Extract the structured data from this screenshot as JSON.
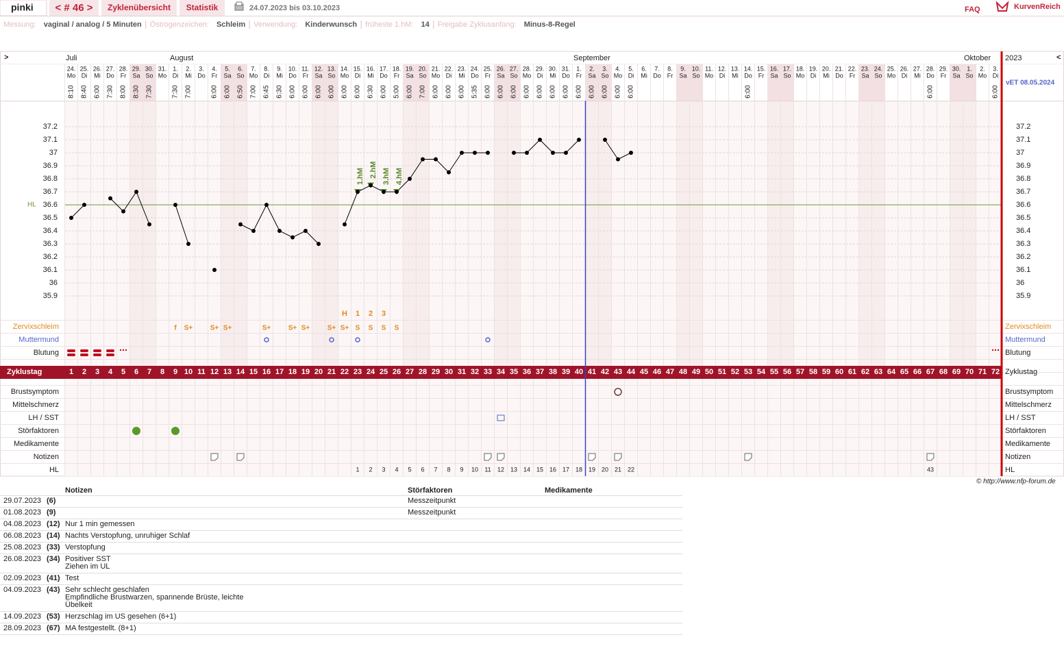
{
  "header": {
    "user": "pinki",
    "cycle": "< # 46 >",
    "tabs": [
      "Zyklenübersicht",
      "Statistik"
    ],
    "date_range": "24.07.2023 bis 03.10.2023",
    "faq": "FAQ",
    "brand": "KurvenReich"
  },
  "info": [
    {
      "label": "Messung:",
      "value": "vaginal / analog / 5 Minuten"
    },
    {
      "label": "Östrogenzeichen:",
      "value": "Schleim"
    },
    {
      "label": "Verwendung:",
      "value": "Kinderwunsch"
    },
    {
      "label": "früheste 1.hM:",
      "value": "14"
    },
    {
      "label": "Freigabe Zyklusanfang:",
      "value": "Minus-8-Regel"
    }
  ],
  "chart_data": {
    "type": "line",
    "nav_left": ">",
    "nav_right": "<",
    "year": "2023",
    "vet": "vET 08.05.2024",
    "months": [
      "Juli",
      null,
      null,
      null,
      null,
      null,
      null,
      null,
      "August",
      null,
      null,
      null,
      null,
      null,
      null,
      null,
      null,
      null,
      null,
      null,
      null,
      null,
      null,
      null,
      null,
      null,
      null,
      null,
      null,
      null,
      null,
      null,
      null,
      null,
      null,
      null,
      null,
      null,
      null,
      "September",
      null,
      null,
      null,
      null,
      null,
      null,
      null,
      null,
      null,
      null,
      null,
      null,
      null,
      null,
      null,
      null,
      null,
      null,
      null,
      null,
      null,
      null,
      null,
      null,
      null,
      null,
      null,
      null,
      null,
      "Oktober",
      null,
      null
    ],
    "dates": [
      "24.",
      "25.",
      "26.",
      "27.",
      "28.",
      "29.",
      "30.",
      "31.",
      "1.",
      "2.",
      "3.",
      "4.",
      "5.",
      "6.",
      "7.",
      "8.",
      "9.",
      "10.",
      "11.",
      "12.",
      "13.",
      "14.",
      "15.",
      "16.",
      "17.",
      "18.",
      "19.",
      "20.",
      "21.",
      "22.",
      "23.",
      "24.",
      "25.",
      "26.",
      "27.",
      "28.",
      "29.",
      "30.",
      "31.",
      "1.",
      "2.",
      "3.",
      "4.",
      "5.",
      "6.",
      "7.",
      "8.",
      "9.",
      "10.",
      "11.",
      "12.",
      "13.",
      "14.",
      "15.",
      "16.",
      "17.",
      "18.",
      "19.",
      "20.",
      "21.",
      "22.",
      "23.",
      "24.",
      "25.",
      "26.",
      "27.",
      "28.",
      "29.",
      "30.",
      "1.",
      "2.",
      "3."
    ],
    "weekdays": [
      "Mo",
      "Di",
      "Mi",
      "Do",
      "Fr",
      "Sa",
      "So",
      "Mo",
      "Di",
      "Mi",
      "Do",
      "Fr",
      "Sa",
      "So",
      "Mo",
      "Di",
      "Mi",
      "Do",
      "Fr",
      "Sa",
      "So",
      "Mo",
      "Di",
      "Mi",
      "Do",
      "Fr",
      "Sa",
      "So",
      "Mo",
      "Di",
      "Mi",
      "Do",
      "Fr",
      "Sa",
      "So",
      "Mo",
      "Di",
      "Mi",
      "Do",
      "Fr",
      "Sa",
      "So",
      "Mo",
      "Di",
      "Mi",
      "Do",
      "Fr",
      "Sa",
      "So",
      "Mo",
      "Di",
      "Mi",
      "Do",
      "Fr",
      "Sa",
      "So",
      "Mo",
      "Di",
      "Mi",
      "Do",
      "Fr",
      "Sa",
      "So",
      "Mo",
      "Di",
      "Mi",
      "Do",
      "Fr",
      "Sa",
      "So",
      "Mo",
      "Di"
    ],
    "times": [
      "8:10",
      "8:40",
      "6:00",
      "7:30",
      "8:00",
      "8:30",
      "7:30",
      null,
      "7:30",
      "7:00",
      null,
      "6:00",
      "6:00",
      "6:50",
      "7:00",
      "6:45",
      "6:30",
      "6:00",
      "6:00",
      "6:00",
      "6:00",
      "6:00",
      "6:00",
      "6:30",
      "6:00",
      "5:00",
      "6:00",
      "7:00",
      "6:00",
      "6:00",
      "6:00",
      "5:35",
      "6:00",
      "6:00",
      "6:00",
      "6:00",
      "6:00",
      "6:00",
      "6:00",
      "6:00",
      "6:00",
      "6:00",
      "6:00",
      "6:00",
      null,
      null,
      null,
      null,
      null,
      null,
      null,
      null,
      "6:00",
      null,
      null,
      null,
      null,
      null,
      null,
      null,
      null,
      null,
      null,
      null,
      null,
      null,
      "6:00",
      null,
      null,
      null,
      null,
      "6:00"
    ],
    "categories": [
      1,
      2,
      3,
      4,
      5,
      6,
      7,
      8,
      9,
      10,
      11,
      12,
      13,
      14,
      15,
      16,
      17,
      18,
      19,
      20,
      21,
      22,
      23,
      24,
      25,
      26,
      27,
      28,
      29,
      30,
      31,
      32,
      33,
      34,
      35,
      36,
      37,
      38,
      39,
      40,
      41,
      42,
      43,
      44,
      45,
      46,
      47,
      48,
      49,
      50,
      51,
      52,
      53,
      54,
      55,
      56,
      57,
      58,
      59,
      60,
      61,
      62,
      63,
      64,
      65,
      66,
      67,
      68,
      69,
      70,
      71,
      72
    ],
    "series": [
      {
        "name": "Temperatur",
        "color": "#000000",
        "values": [
          36.5,
          36.6,
          null,
          36.65,
          36.55,
          36.7,
          36.45,
          null,
          36.6,
          36.3,
          null,
          36.1,
          null,
          36.45,
          36.4,
          36.6,
          36.4,
          36.35,
          36.4,
          36.3,
          null,
          36.45,
          36.7,
          36.75,
          36.7,
          36.7,
          36.8,
          36.95,
          36.95,
          36.85,
          37,
          37,
          37,
          null,
          37,
          37,
          37.1,
          37,
          37,
          37.1,
          null,
          37.1,
          36.95,
          37,
          null,
          null,
          null,
          null,
          null,
          null,
          null,
          null,
          null,
          null,
          null,
          null,
          null,
          null,
          null,
          null,
          null,
          null,
          null,
          null,
          null,
          null,
          null,
          null,
          null,
          null,
          null,
          null
        ]
      }
    ],
    "ylim": [
      35.8,
      37.3
    ],
    "yticks": [
      35.9,
      36,
      36.1,
      36.2,
      36.3,
      36.4,
      36.5,
      36.6,
      36.7,
      36.8,
      36.9,
      37,
      37.1,
      37.2
    ],
    "grid": true,
    "hl": {
      "label": "HL",
      "value": 36.6,
      "color": "#6a9a3a"
    },
    "hm_labels": [
      null,
      null,
      null,
      null,
      null,
      null,
      null,
      null,
      null,
      null,
      null,
      null,
      null,
      null,
      null,
      null,
      null,
      null,
      null,
      null,
      null,
      null,
      "1.hM",
      "2.hM",
      "3.hM",
      "4.hM",
      null,
      null,
      null,
      null,
      null,
      null,
      null,
      null,
      null,
      null,
      null,
      null,
      null,
      null,
      null,
      null,
      null,
      null,
      null,
      null,
      null,
      null,
      null,
      null,
      null,
      null,
      null,
      null,
      null,
      null,
      null,
      null,
      null,
      null,
      null,
      null,
      null,
      null,
      null,
      null,
      null,
      null,
      null,
      null,
      null,
      null
    ],
    "peak_labels": [
      null,
      null,
      null,
      null,
      null,
      null,
      null,
      null,
      null,
      null,
      null,
      null,
      null,
      null,
      null,
      null,
      null,
      null,
      null,
      null,
      null,
      "H",
      "1",
      "2",
      "3",
      null,
      null,
      null,
      null,
      null,
      null,
      null,
      null,
      null,
      null,
      null,
      null,
      null,
      null,
      null,
      null,
      null,
      null,
      null,
      null,
      null,
      null,
      null,
      null,
      null,
      null,
      null,
      null,
      null,
      null,
      null,
      null,
      null,
      null,
      null,
      null,
      null,
      null,
      null,
      null,
      null,
      null,
      null,
      null,
      null,
      null,
      null
    ],
    "rows": [
      {
        "label": "Zervixschleim",
        "color": "#e08a20",
        "values": [
          null,
          null,
          null,
          null,
          null,
          null,
          null,
          null,
          "f",
          "S+",
          null,
          "S+",
          "S+",
          null,
          null,
          "S+",
          null,
          "S+",
          "S+",
          null,
          "S+",
          "S+",
          "S",
          "S",
          "S",
          "S",
          null,
          null,
          null,
          null,
          null,
          null,
          null,
          null,
          null,
          null,
          null,
          null,
          null,
          null,
          null,
          null,
          null,
          null,
          null,
          null,
          null,
          null,
          null,
          null,
          null,
          null,
          null,
          null,
          null,
          null,
          null,
          null,
          null,
          null,
          null,
          null,
          null,
          null,
          null,
          null,
          null,
          null,
          null,
          null,
          null,
          null
        ]
      },
      {
        "label": "Muttermund",
        "color": "#5566cc",
        "days": [
          16,
          21,
          23,
          33
        ]
      },
      {
        "label": "Blutung",
        "heavy": [
          1,
          2,
          3,
          4
        ],
        "spotting": [
          5,
          72
        ]
      },
      {
        "label": "Zyklustag"
      },
      {
        "label": "Brustsymptom",
        "days": [
          43
        ]
      },
      {
        "label": "Mittelschmerz"
      },
      {
        "label": "LH / SST",
        "days": [
          34
        ]
      },
      {
        "label": "Störfaktoren",
        "days": [
          6,
          9
        ]
      },
      {
        "label": "Medikamente"
      },
      {
        "label": "Notizen",
        "days": [
          12,
          14,
          33,
          34,
          41,
          43,
          53,
          67
        ]
      },
      {
        "label": "HL",
        "values": [
          null,
          null,
          null,
          null,
          null,
          null,
          null,
          null,
          null,
          null,
          null,
          null,
          null,
          null,
          null,
          null,
          null,
          null,
          null,
          null,
          null,
          null,
          1,
          2,
          3,
          4,
          5,
          6,
          7,
          8,
          9,
          10,
          11,
          12,
          13,
          14,
          15,
          16,
          17,
          18,
          19,
          20,
          21,
          22,
          null,
          null,
          null,
          null,
          null,
          null,
          null,
          null,
          null,
          null,
          null,
          null,
          null,
          null,
          null,
          null,
          null,
          null,
          null,
          null,
          null,
          null,
          43,
          null,
          null,
          null,
          null,
          null
        ]
      }
    ]
  },
  "notes_table": {
    "headers": [
      "Notizen",
      "Störfaktoren",
      "Medikamente"
    ],
    "rows": [
      {
        "date": "29.07.2023",
        "day": "(6)",
        "stoerfaktoren": "Messzeitpunkt"
      },
      {
        "date": "01.08.2023",
        "day": "(9)",
        "stoerfaktoren": "Messzeitpunkt"
      },
      {
        "date": "04.08.2023",
        "day": "(12)",
        "notes": [
          "Nur 1 min gemessen"
        ]
      },
      {
        "date": "06.08.2023",
        "day": "(14)",
        "notes": [
          "Nachts Verstopfung, unruhiger Schlaf"
        ]
      },
      {
        "date": "25.08.2023",
        "day": "(33)",
        "notes": [
          "Verstopfung"
        ]
      },
      {
        "date": "26.08.2023",
        "day": "(34)",
        "notes": [
          "Positiver SST",
          "Ziehen im UL"
        ]
      },
      {
        "date": "02.09.2023",
        "day": "(41)",
        "notes": [
          "Test"
        ]
      },
      {
        "date": "04.09.2023",
        "day": "(43)",
        "notes": [
          "Sehr schlecht geschlafen",
          "Empfindliche Brustwarzen, spannende Brüste, leichte",
          "Übelkeit"
        ]
      },
      {
        "date": "14.09.2023",
        "day": "(53)",
        "notes": [
          "Herzschlag im US gesehen (6+1)"
        ]
      },
      {
        "date": "28.09.2023",
        "day": "(67)",
        "notes": [
          "MA festgestellt. (8+1)"
        ]
      }
    ]
  },
  "copyright": "© http://www.nfp-forum.de"
}
